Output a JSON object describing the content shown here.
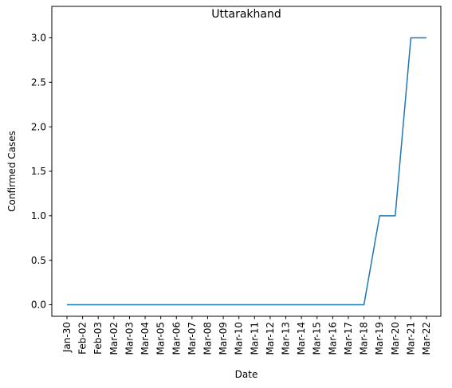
{
  "chart_data": {
    "type": "line",
    "title": "Uttarakhand",
    "xlabel": "Date",
    "ylabel": "Confirmed Cases",
    "categories": [
      "Jan-30",
      "Feb-02",
      "Feb-03",
      "Mar-02",
      "Mar-03",
      "Mar-04",
      "Mar-05",
      "Mar-06",
      "Mar-07",
      "Mar-08",
      "Mar-09",
      "Mar-10",
      "Mar-11",
      "Mar-12",
      "Mar-13",
      "Mar-14",
      "Mar-15",
      "Mar-16",
      "Mar-17",
      "Mar-18",
      "Mar-19",
      "Mar-20",
      "Mar-21",
      "Mar-22"
    ],
    "series": [
      {
        "name": "Uttarakhand",
        "values": [
          0,
          0,
          0,
          0,
          0,
          0,
          0,
          0,
          0,
          0,
          0,
          0,
          0,
          0,
          0,
          0,
          0,
          0,
          0,
          0,
          1,
          1,
          3,
          3
        ],
        "color": "#1f77b4"
      }
    ],
    "yticks": [
      0.0,
      0.5,
      1.0,
      1.5,
      2.0,
      2.5,
      3.0
    ],
    "ytick_labels": [
      "0.0",
      "0.5",
      "1.0",
      "1.5",
      "2.0",
      "2.5",
      "3.0"
    ],
    "ylim": [
      -0.15,
      3.15
    ],
    "grid": false,
    "legend": false
  }
}
